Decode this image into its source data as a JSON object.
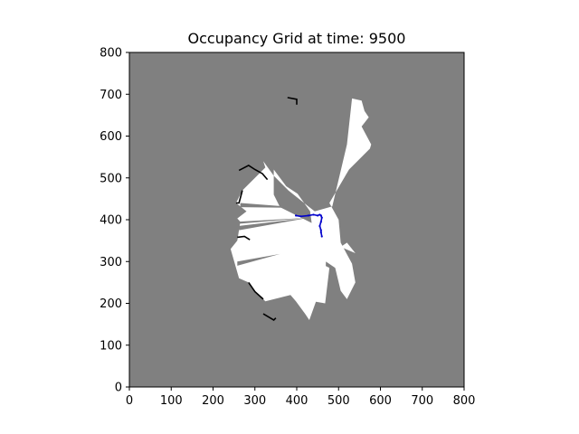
{
  "chart_data": {
    "type": "heatmap",
    "title": "Occupancy Grid at time: 9500",
    "xlabel": "",
    "ylabel": "",
    "xlim": [
      0,
      800
    ],
    "ylim": [
      0,
      800
    ],
    "xticks": [
      0,
      100,
      200,
      300,
      400,
      500,
      600,
      700,
      800
    ],
    "yticks": [
      0,
      100,
      200,
      300,
      400,
      500,
      600,
      700,
      800
    ],
    "xtick_labels": [
      "0",
      "100",
      "200",
      "300",
      "400",
      "500",
      "600",
      "700",
      "800"
    ],
    "ytick_labels": [
      "0",
      "100",
      "200",
      "300",
      "400",
      "500",
      "600",
      "700",
      "800"
    ],
    "grid": false,
    "colors": {
      "unknown": "#808080",
      "free": "#ffffff",
      "occupied": "#000000",
      "path": "#0000cc"
    },
    "free_regions": [
      [
        [
          443,
          420
        ],
        [
          485,
          432
        ],
        [
          520,
          580
        ],
        [
          532,
          690
        ],
        [
          555,
          685
        ],
        [
          562,
          660
        ],
        [
          572,
          645
        ],
        [
          555,
          623
        ],
        [
          578,
          580
        ],
        [
          575,
          570
        ],
        [
          525,
          520
        ],
        [
          478,
          440
        ],
        [
          500,
          400
        ],
        [
          505,
          345
        ],
        [
          532,
          295
        ],
        [
          540,
          250
        ],
        [
          520,
          210
        ],
        [
          505,
          230
        ],
        [
          492,
          285
        ],
        [
          462,
          305
        ],
        [
          455,
          325
        ],
        [
          440,
          360
        ],
        [
          432,
          420
        ],
        [
          402,
          462
        ],
        [
          375,
          480
        ],
        [
          345,
          520
        ],
        [
          345,
          460
        ],
        [
          360,
          430
        ],
        [
          460,
          380
        ],
        [
          472,
          360
        ],
        [
          468,
          250
        ],
        [
          448,
          210
        ],
        [
          430,
          160
        ],
        [
          420,
          175
        ],
        [
          398,
          205
        ],
        [
          385,
          220
        ],
        [
          325,
          205
        ],
        [
          300,
          230
        ],
        [
          285,
          250
        ],
        [
          262,
          260
        ],
        [
          242,
          330
        ],
        [
          258,
          350
        ],
        [
          265,
          395
        ],
        [
          258,
          403
        ],
        [
          280,
          420
        ],
        [
          255,
          440
        ],
        [
          270,
          470
        ],
        [
          325,
          525
        ],
        [
          320,
          540
        ],
        [
          345,
          505
        ],
        [
          380,
          470
        ],
        [
          430,
          430
        ]
      ],
      [
        [
          440,
          205
        ],
        [
          468,
          200
        ],
        [
          478,
          285
        ],
        [
          448,
          300
        ],
        [
          435,
          320
        ]
      ],
      [
        [
          505,
          335
        ],
        [
          540,
          320
        ],
        [
          520,
          345
        ]
      ]
    ],
    "unknown_wedges": [
      [
        [
          258,
          390
        ],
        [
          430,
          405
        ],
        [
          258,
          395
        ]
      ],
      [
        [
          262,
          385
        ],
        [
          430,
          405
        ],
        [
          262,
          375
        ]
      ],
      [
        [
          258,
          290
        ],
        [
          360,
          318
        ],
        [
          258,
          300
        ]
      ],
      [
        [
          265,
          430
        ],
        [
          420,
          428
        ],
        [
          265,
          440
        ]
      ]
    ],
    "occupied_edges": [
      [
        [
          378,
          692
        ],
        [
          400,
          688
        ],
        [
          400,
          675
        ]
      ],
      [
        [
          262,
          518
        ],
        [
          285,
          530
        ],
        [
          300,
          520
        ],
        [
          318,
          510
        ],
        [
          330,
          496
        ]
      ],
      [
        [
          258,
          358
        ],
        [
          275,
          360
        ],
        [
          288,
          352
        ]
      ],
      [
        [
          285,
          250
        ],
        [
          300,
          228
        ],
        [
          320,
          210
        ]
      ],
      [
        [
          320,
          175
        ],
        [
          345,
          160
        ],
        [
          350,
          165
        ]
      ],
      [
        [
          255,
          440
        ],
        [
          262,
          440
        ],
        [
          270,
          470
        ]
      ]
    ],
    "path_series": {
      "name": "",
      "x": [
        460,
        458,
        458,
        455,
        458,
        460,
        458,
        455,
        450,
        440,
        428,
        410,
        398
      ],
      "y": [
        360,
        370,
        375,
        385,
        395,
        405,
        410,
        412,
        410,
        412,
        410,
        408,
        410
      ]
    }
  }
}
